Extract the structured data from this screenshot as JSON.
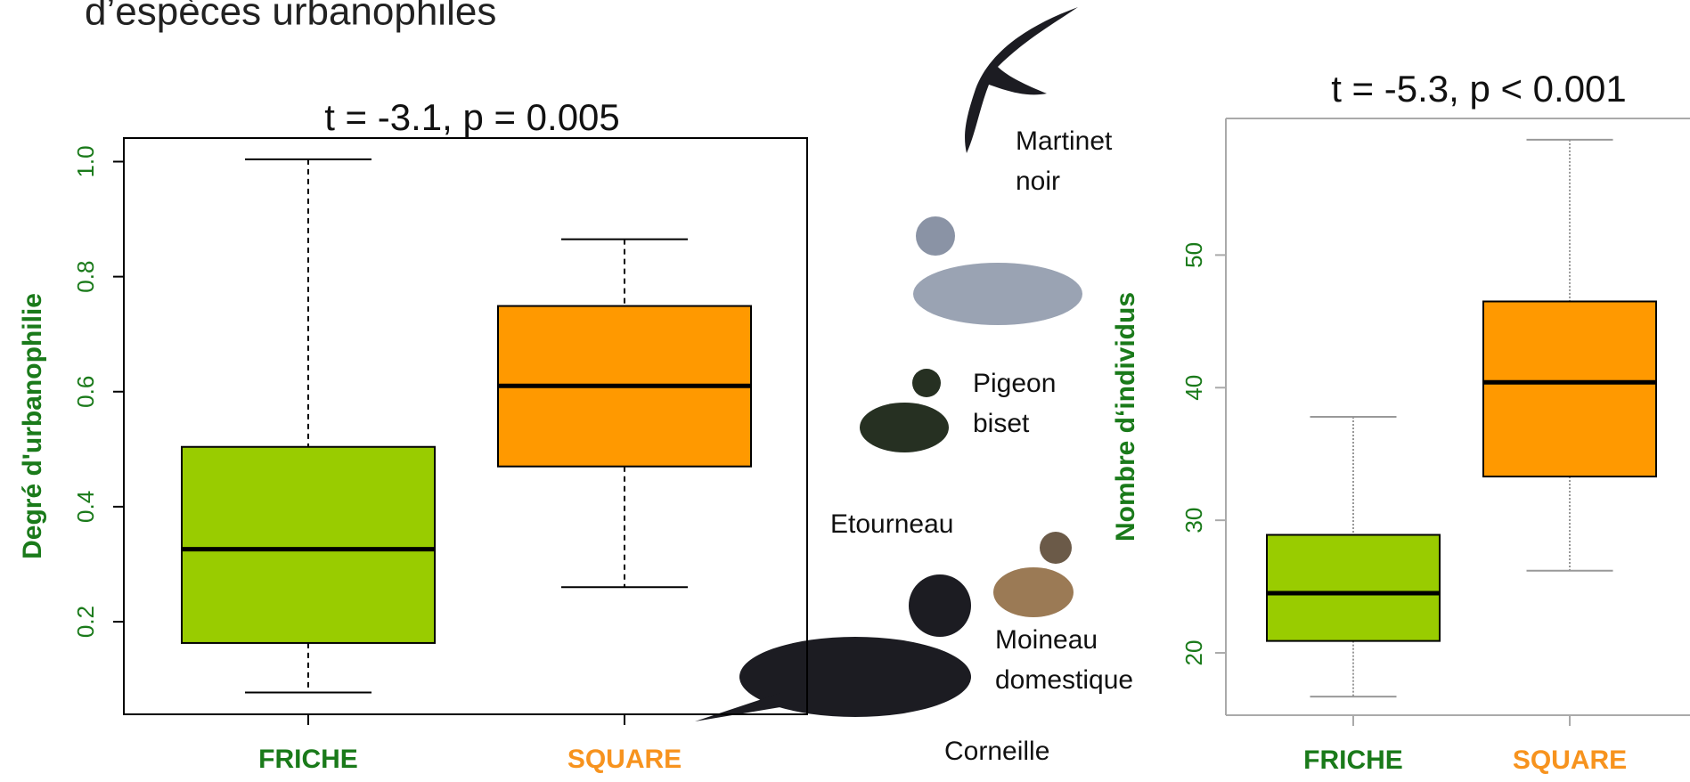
{
  "title": "d’espèces urbanophiles",
  "birds": [
    {
      "lines": [
        "Martinet",
        "noir"
      ]
    },
    {
      "lines": [
        "Pigeon",
        "biset"
      ]
    },
    {
      "lines": [
        "Etourneau"
      ]
    },
    {
      "lines": [
        "Moineau",
        "domestique"
      ]
    },
    {
      "lines": [
        "Corneille"
      ]
    }
  ],
  "chart_data": [
    {
      "type": "boxplot",
      "title": "t = -3.1, p = 0.005",
      "y_label": "Degré d'urbanophilie",
      "categories": [
        "FRICHE",
        "SQUARE"
      ],
      "category_colors": [
        "#1a7a1a",
        "#f7931e"
      ],
      "colors": [
        "#99cc00",
        "#ff9900"
      ],
      "whisker_style": "dashed",
      "values": [
        {
          "min": 0.077,
          "q1": 0.163,
          "median": 0.326,
          "q3": 0.504,
          "max": 1.004
        },
        {
          "min": 0.26,
          "q1": 0.47,
          "median": 0.61,
          "q3": 0.749,
          "max": 0.865
        }
      ],
      "ylim": [
        0.039,
        1.041
      ],
      "yticks": [
        0.2,
        0.4,
        0.6,
        0.8,
        {
          "value": 1,
          "label": "1.0"
        }
      ]
    },
    {
      "type": "boxplot",
      "title": "t = -5.3, p < 0.001",
      "y_label": "Nombre d‘individus",
      "categories": [
        "FRICHE",
        "SQUARE"
      ],
      "category_colors": [
        "#1a7a1a",
        "#f7931e"
      ],
      "colors": [
        "#99cc00",
        "#ff9900"
      ],
      "whisker_style": "dotted",
      "values": [
        {
          "min": 16.7,
          "q1": 20.9,
          "median": 24.5,
          "q3": 28.9,
          "max": 37.8
        },
        {
          "min": 26.2,
          "q1": 33.3,
          "median": 40.4,
          "q3": 46.5,
          "max": 58.7
        }
      ],
      "ylim": [
        15.3,
        60.3
      ],
      "yticks": [
        20,
        30,
        40,
        50
      ]
    }
  ]
}
